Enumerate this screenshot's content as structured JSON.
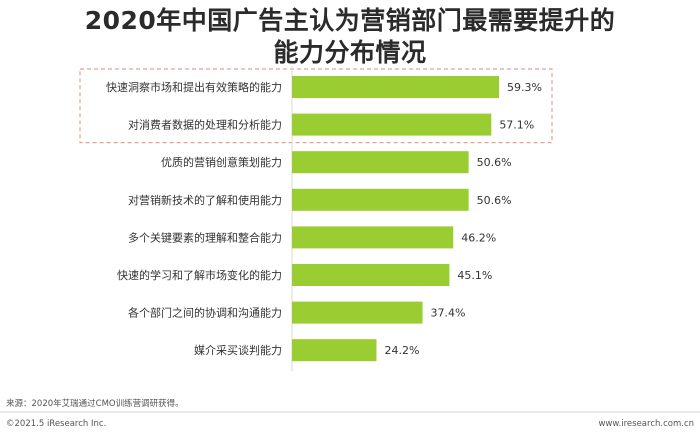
{
  "title_line1": "2020年中国广告主认为营销部门最需要提升的",
  "title_line2": "能力分布情况",
  "source": "来源：2020年艾瑞通过CMO训练营调研获得。",
  "copyright": "©2021.5 iResearch Inc.",
  "website": "www.iresearch.com.cn",
  "colors": {
    "bar": "#9acd32",
    "highlight_border": "#e8a090",
    "text": "#333333"
  },
  "chart_data": {
    "type": "bar",
    "orientation": "horizontal",
    "categories": [
      "快速洞察市场和提出有效策略的能力",
      "对消费者数据的处理和分析能力",
      "优质的营销创意策划能力",
      "对营销新技术的了解和使用能力",
      "多个关键要素的理解和整合能力",
      "快速的学习和了解市场变化的能力",
      "各个部门之间的协调和沟通能力",
      "媒介采买谈判能力"
    ],
    "values": [
      59.3,
      57.1,
      50.6,
      50.6,
      46.2,
      45.1,
      37.4,
      24.2
    ],
    "value_labels": [
      "59.3%",
      "57.1%",
      "50.6%",
      "50.6%",
      "46.2%",
      "45.1%",
      "37.4%",
      "24.2%"
    ],
    "highlighted_categories": [
      0,
      1
    ],
    "xlim": [
      0,
      100
    ],
    "grid": false,
    "legend": "none"
  }
}
